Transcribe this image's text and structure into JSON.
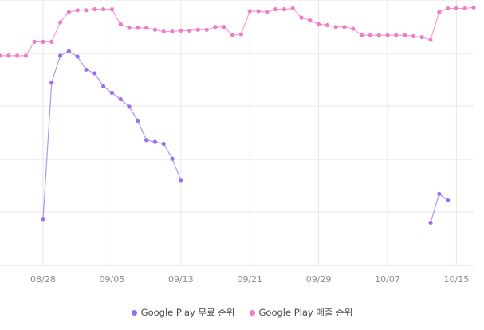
{
  "chart_data": {
    "type": "line",
    "x_ticks": [
      "08/28",
      "09/05",
      "09/13",
      "09/21",
      "09/29",
      "10/07",
      "10/15"
    ],
    "y_tick_labels": [],
    "grid": true,
    "legend_position": "bottom",
    "y_axis_inverted": true,
    "x": [
      "08/23",
      "08/24",
      "08/25",
      "08/26",
      "08/27",
      "08/28",
      "08/29",
      "08/30",
      "08/31",
      "09/01",
      "09/02",
      "09/03",
      "09/04",
      "09/05",
      "09/06",
      "09/07",
      "09/08",
      "09/09",
      "09/10",
      "09/11",
      "09/12",
      "09/13",
      "09/14",
      "09/15",
      "09/16",
      "09/17",
      "09/18",
      "09/19",
      "09/20",
      "09/21",
      "09/22",
      "09/23",
      "09/24",
      "09/25",
      "09/26",
      "09/27",
      "09/28",
      "09/29",
      "09/30",
      "10/01",
      "10/02",
      "10/03",
      "10/04",
      "10/05",
      "10/06",
      "10/07",
      "10/08",
      "10/09",
      "10/10",
      "10/11",
      "10/12",
      "10/13",
      "10/14",
      "10/15",
      "10/16",
      "10/17"
    ],
    "series": [
      {
        "name": "Google Play 무료 순위",
        "color": "#9b6cf0",
        "values": [
          null,
          null,
          null,
          null,
          null,
          196,
          49,
          20,
          15,
          21,
          35,
          39,
          53,
          60,
          67,
          75,
          90,
          111,
          113,
          115,
          131,
          154,
          null,
          null,
          null,
          null,
          null,
          null,
          null,
          null,
          null,
          null,
          null,
          null,
          null,
          null,
          null,
          null,
          null,
          null,
          null,
          null,
          null,
          null,
          null,
          null,
          null,
          null,
          null,
          null,
          200,
          169,
          176,
          null,
          null,
          null
        ]
      },
      {
        "name": "Google Play 매출 순위",
        "color": "#f07cc8",
        "values": [
          20,
          20,
          20,
          20,
          5,
          5,
          5,
          -16,
          -27,
          -29,
          -29,
          -30,
          -30,
          -30,
          -14,
          -10,
          -10,
          -10,
          -8,
          -6,
          -6,
          -7,
          -7,
          -8,
          -8,
          -11,
          -11,
          -2,
          -3,
          -28,
          -28,
          -27,
          -30,
          -30,
          -31,
          -21,
          -18,
          -14,
          -13,
          -11,
          -11,
          -9,
          -2,
          -2,
          -2,
          -2,
          -2,
          -2,
          -1,
          0,
          3,
          -27,
          -31,
          -31,
          -31,
          -32
        ]
      }
    ]
  }
}
